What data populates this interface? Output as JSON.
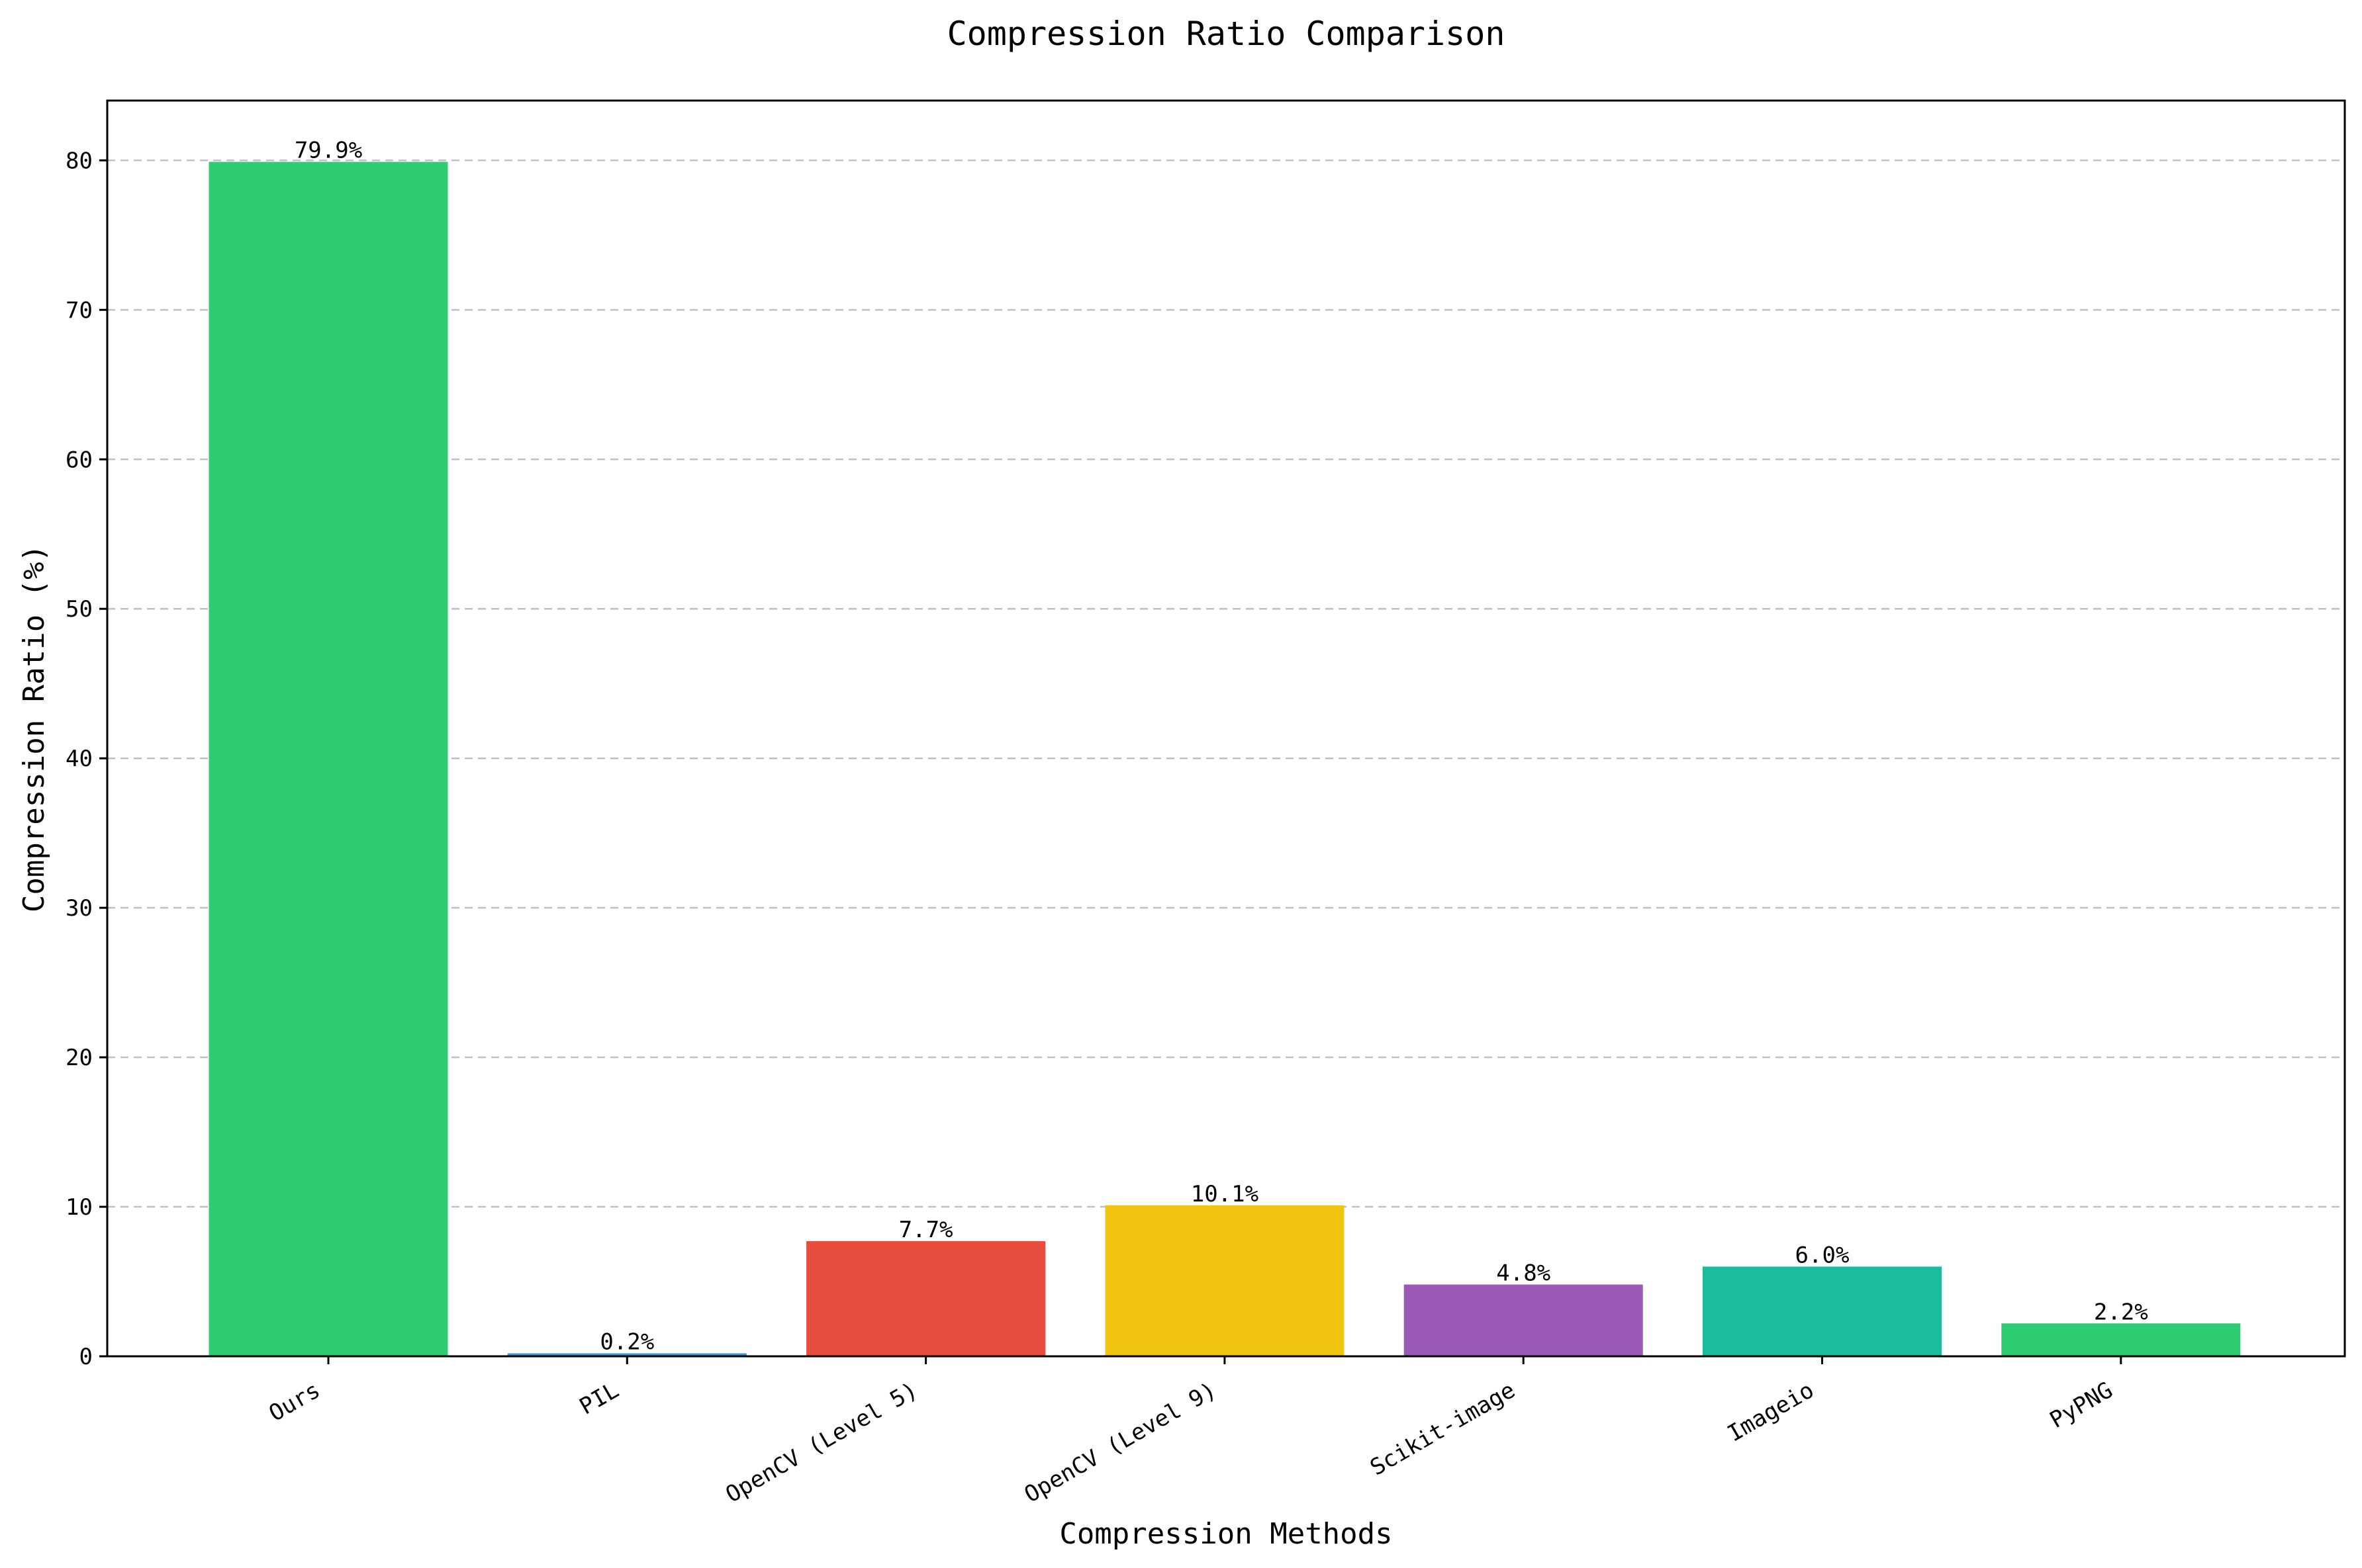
{
  "chart_data": {
    "type": "bar",
    "title": "Compression Ratio Comparison",
    "xlabel": "Compression Methods",
    "ylabel": "Compression Ratio (%)",
    "ylim": [
      0,
      84
    ],
    "yticks": [
      0,
      10,
      20,
      30,
      40,
      50,
      60,
      70,
      80
    ],
    "grid": "y-axis, dashed",
    "categories": [
      "Ours",
      "PIL",
      "OpenCV (Level 5)",
      "OpenCV (Level 9)",
      "Scikit-image",
      "Imageio",
      "PyPNG"
    ],
    "values": [
      79.9,
      0.2,
      7.7,
      10.1,
      4.8,
      6.0,
      2.2
    ],
    "data_labels": [
      "79.9%",
      "0.2%",
      "7.7%",
      "10.1%",
      "4.8%",
      "6.0%",
      "2.2%"
    ],
    "colors": [
      "#2ecc71",
      "#3498db",
      "#e74c3c",
      "#f1c40f",
      "#9b59b6",
      "#1abc9c",
      "#2ecc71"
    ]
  }
}
